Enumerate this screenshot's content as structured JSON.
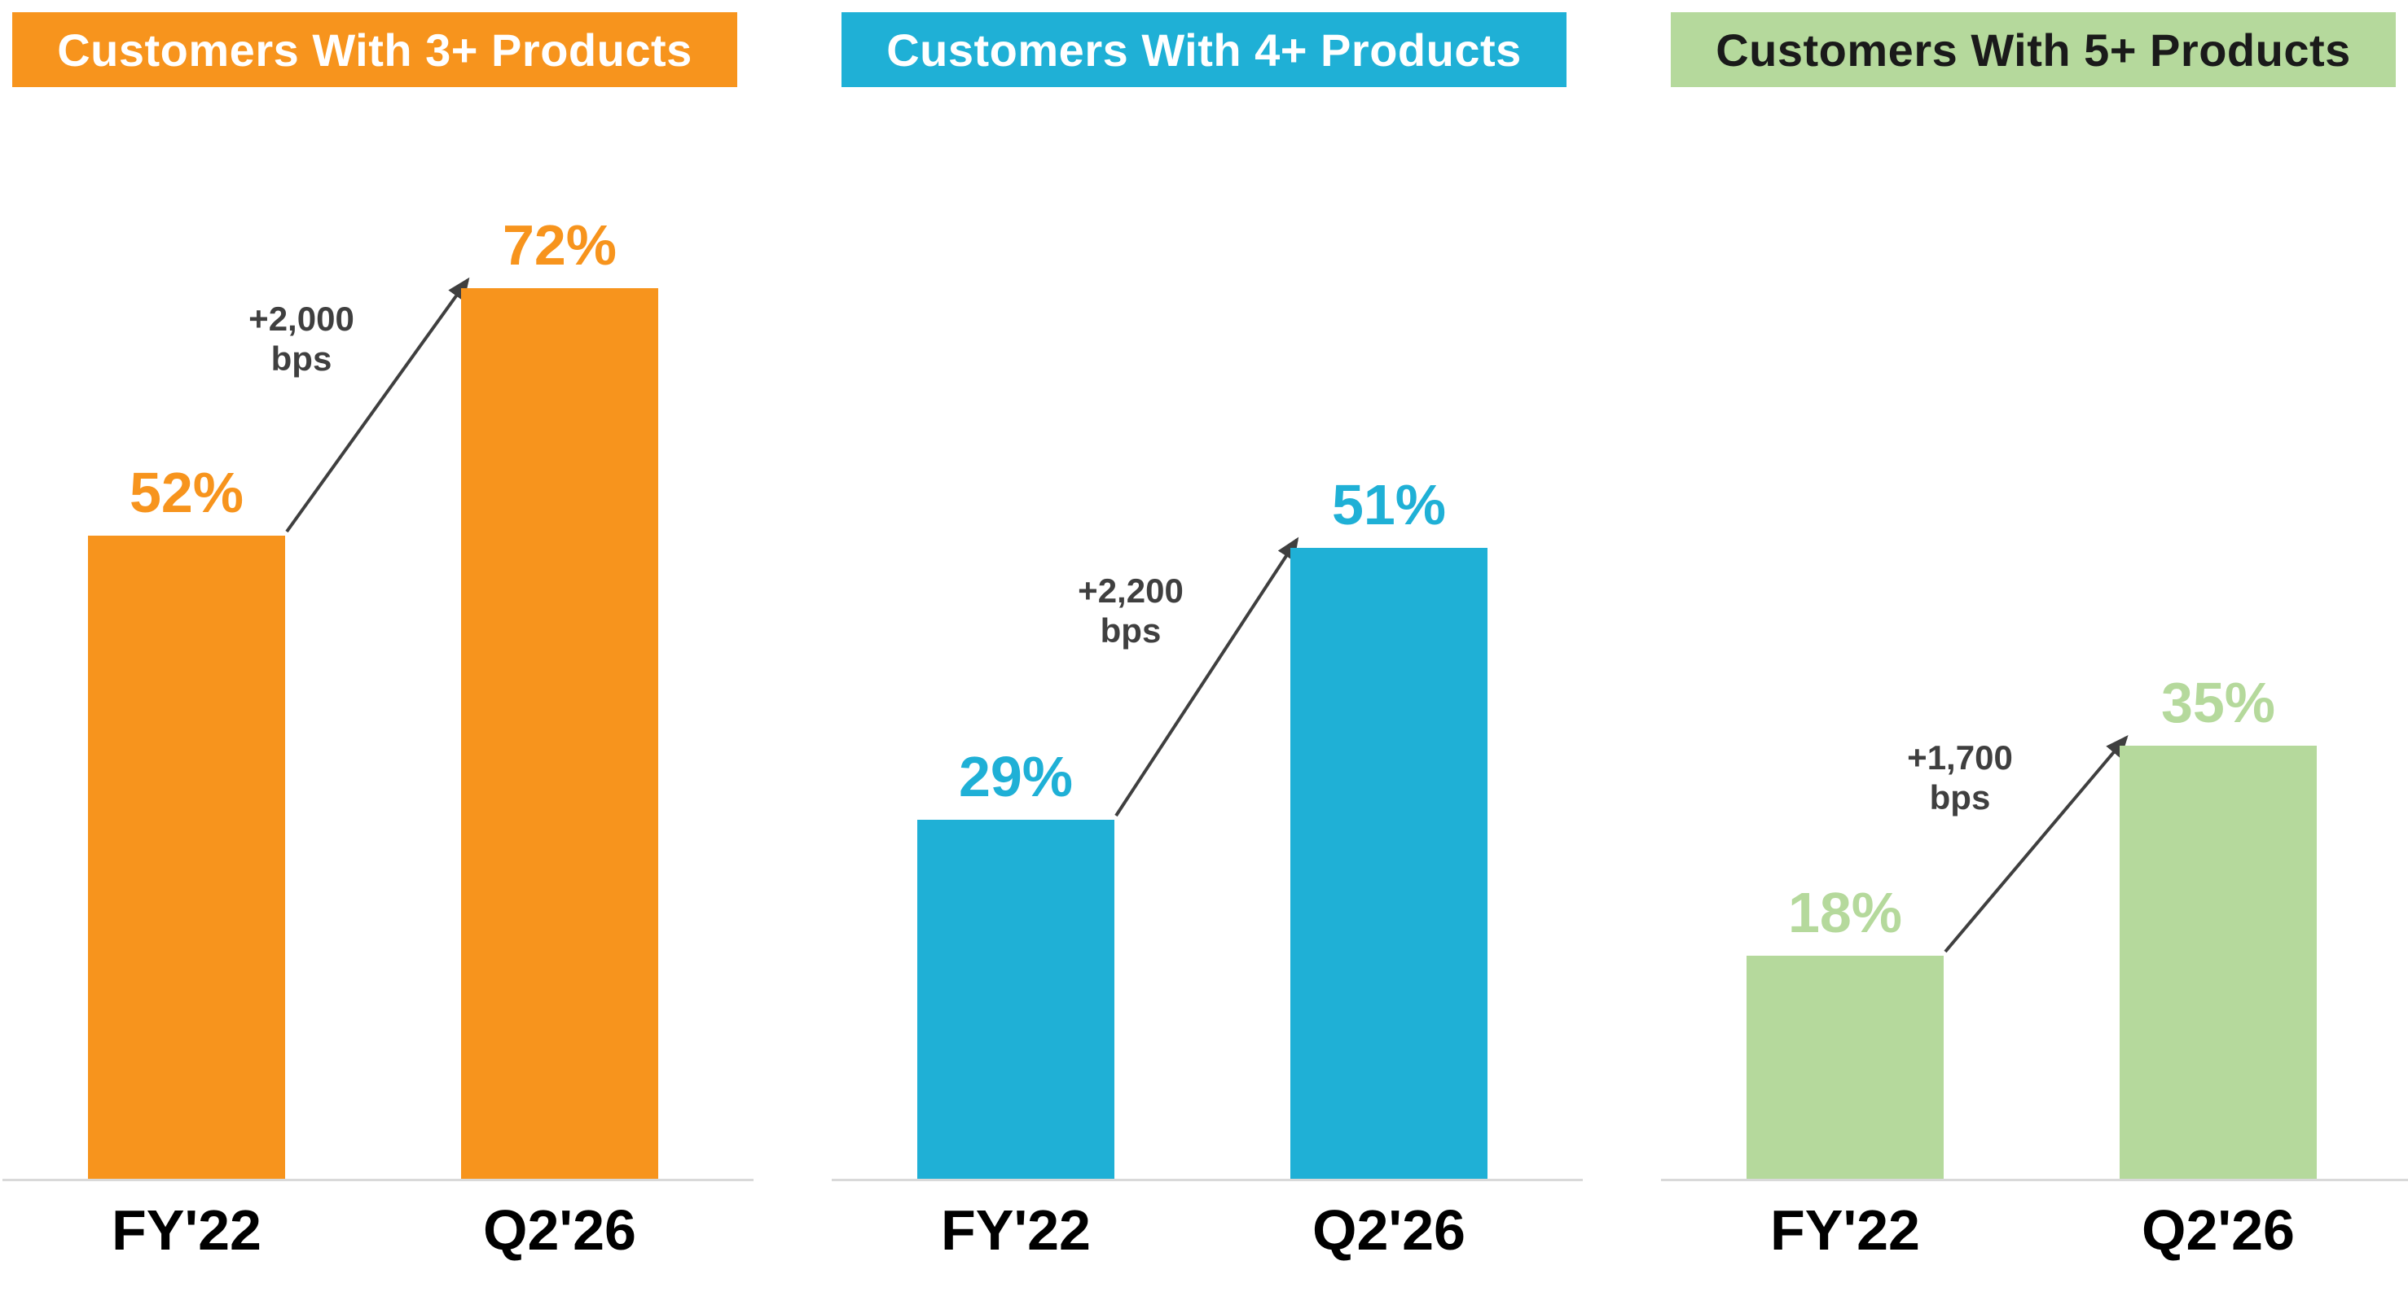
{
  "page": {
    "background": "#FFFFFF"
  },
  "chart_data": [
    {
      "type": "bar",
      "title": "Customers With 3+ Products",
      "categories": [
        "FY'22",
        "Q2'26"
      ],
      "values": [
        52,
        72
      ],
      "value_labels": [
        "52%",
        "72%"
      ],
      "annotation": {
        "delta": "+2,000",
        "unit": "bps"
      },
      "bar_color": "#F7941D",
      "label_color": "#F7941D",
      "header_bg": "#F7941D",
      "header_text": "#FFFFFF",
      "xlabel": "",
      "ylabel": "",
      "ylim": [
        0,
        88
      ],
      "grid": false,
      "legend": false
    },
    {
      "type": "bar",
      "title": "Customers With 4+ Products",
      "categories": [
        "FY'22",
        "Q2'26"
      ],
      "values": [
        29,
        51
      ],
      "value_labels": [
        "29%",
        "51%"
      ],
      "annotation": {
        "delta": "+2,200",
        "unit": "bps"
      },
      "bar_color": "#1FB0D6",
      "label_color": "#1FB0D6",
      "header_bg": "#1FB0D6",
      "header_text": "#FFFFFF",
      "xlabel": "",
      "ylabel": "",
      "ylim": [
        0,
        88
      ],
      "grid": false,
      "legend": false
    },
    {
      "type": "bar",
      "title": "Customers With 5+ Products",
      "categories": [
        "FY'22",
        "Q2'26"
      ],
      "values": [
        18,
        35
      ],
      "value_labels": [
        "18%",
        "35%"
      ],
      "annotation": {
        "delta": "+1,700",
        "unit": "bps"
      },
      "bar_color": "#B5D99C",
      "label_color": "#B5D99C",
      "header_bg": "#B5D99C",
      "header_text": "#1A1A1A",
      "xlabel": "",
      "ylabel": "",
      "ylim": [
        0,
        88
      ],
      "grid": false,
      "legend": false
    }
  ],
  "style": {
    "axis_line_color": "#D9D9D9",
    "arrow_color": "#3F3F3F",
    "tick_label_color": "#000000"
  }
}
